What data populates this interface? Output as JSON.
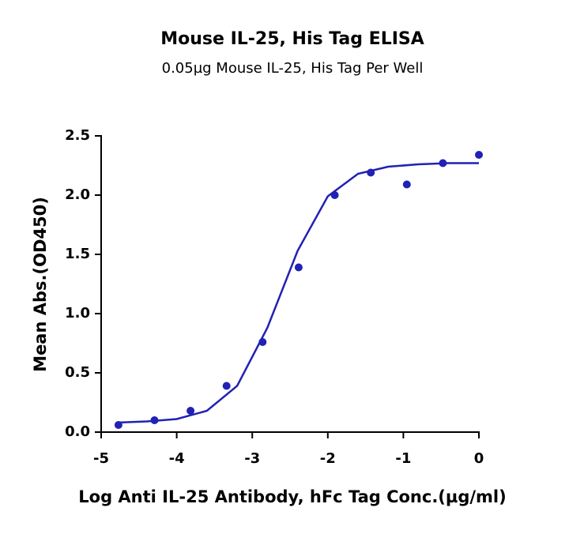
{
  "chart_data": {
    "type": "scatter",
    "title": "Mouse IL-25, His Tag ELISA",
    "subtitle": "0.05µg Mouse IL-25, His Tag Per Well",
    "x_label": "Log Anti IL-25 Antibody, hFc Tag Conc.(µg/ml)",
    "y_label": "Mean Abs.(OD450)",
    "color": "#2121b3",
    "x": [
      -4.771,
      -4.294,
      -3.817,
      -3.34,
      -2.863,
      -2.386,
      -1.908,
      -1.431,
      -0.954,
      -0.477,
      0
    ],
    "values": [
      0.06,
      0.1,
      0.18,
      0.39,
      0.76,
      1.39,
      2.0,
      2.19,
      2.09,
      2.27,
      2.34
    ],
    "fit": {
      "x": [
        -4.8,
        -4.4,
        -4.0,
        -3.6,
        -3.2,
        -2.8,
        -2.4,
        -2.0,
        -1.6,
        -1.2,
        -0.8,
        -0.4,
        0
      ],
      "values": [
        0.08,
        0.09,
        0.11,
        0.18,
        0.39,
        0.88,
        1.53,
        1.99,
        2.18,
        2.24,
        2.26,
        2.27,
        2.27
      ]
    },
    "xlim": [
      -5,
      0
    ],
    "xticks": [
      -5,
      -4,
      -3,
      -2,
      -1,
      0
    ],
    "ylim": [
      0,
      2.5
    ],
    "yticks": [
      {
        "value": 0,
        "label": "0.0"
      },
      0.5,
      {
        "value": 1,
        "label": "1.0"
      },
      1.5,
      {
        "value": 2,
        "label": "2.0"
      },
      2.5
    ]
  }
}
